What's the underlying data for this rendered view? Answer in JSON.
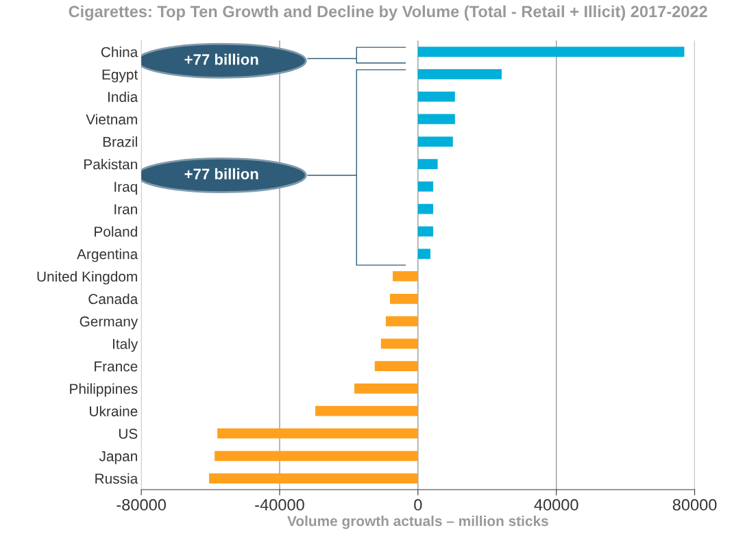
{
  "chart_data": {
    "type": "bar",
    "orientation": "horizontal",
    "title": "Cigarettes: Top Ten Growth and Decline by Volume (Total - Retail + Illicit) 2017-2022",
    "xlabel": "Volume growth actuals – million sticks",
    "categories": [
      "China",
      "Egypt",
      "India",
      "Vietnam",
      "Brazil",
      "Pakistan",
      "Iraq",
      "Iran",
      "Poland",
      "Argentina",
      "United Kingdom",
      "Canada",
      "Germany",
      "Italy",
      "France",
      "Philippines",
      "Ukraine",
      "US",
      "Japan",
      "Russia"
    ],
    "values": [
      77000,
      24200,
      10700,
      10700,
      10100,
      5700,
      4400,
      4400,
      4400,
      3600,
      -7300,
      -8100,
      -9300,
      -10700,
      -12500,
      -18400,
      -29700,
      -58000,
      -58800,
      -60400
    ],
    "colors": [
      "#00b0da",
      "#00b0da",
      "#00b0da",
      "#00b0da",
      "#00b0da",
      "#00b0da",
      "#00b0da",
      "#00b0da",
      "#00b0da",
      "#00b0da",
      "#ffa11f",
      "#ffa11f",
      "#ffa11f",
      "#ffa11f",
      "#ffa11f",
      "#ffa11f",
      "#ffa11f",
      "#ffa11f",
      "#ffa11f",
      "#ffa11f"
    ],
    "xlim": [
      -80000,
      80000
    ],
    "xticks": [
      -80000,
      -40000,
      0,
      40000,
      80000
    ],
    "grid": "x",
    "annotations": [
      "+77 billion",
      "+77 billion"
    ]
  }
}
